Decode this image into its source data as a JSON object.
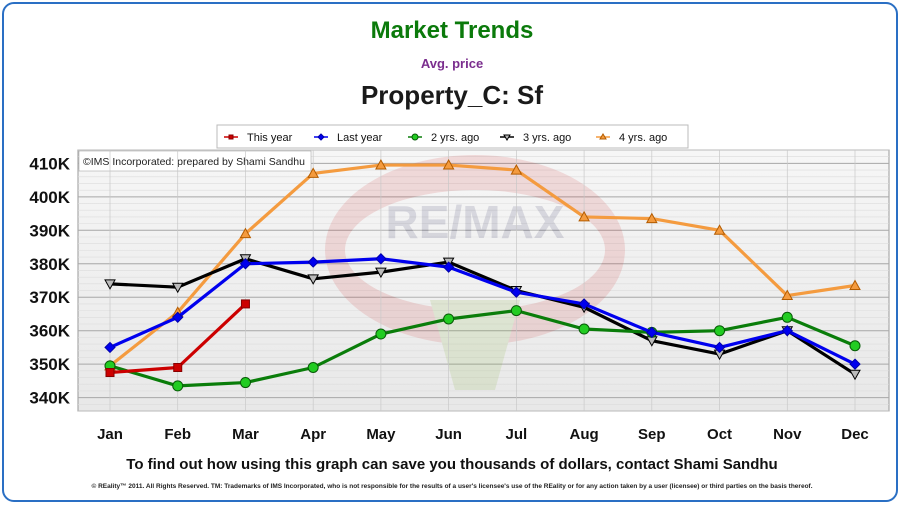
{
  "header": {
    "title": "Market Trends",
    "subtitle": "Avg. price",
    "heading": "Property_C: Sf"
  },
  "watermark": "©IMS Incorporated: prepared by Shami Sandhu",
  "footer": {
    "cta": "To find out how using this graph can save you thousands of dollars, contact Shami Sandhu",
    "legal": "© REality™ 2011. All Rights Reserved. TM: Trademarks of IMS Incorporated, who is not responsible for the results of a user's licensee's use of the REality  or for any action taken by a user (licensee) or third parties on the basis thereof."
  },
  "chart_data": {
    "type": "line",
    "title": "Property_C: Sf",
    "ylabel": "",
    "xlabel": "",
    "categories": [
      "Jan",
      "Feb",
      "Mar",
      "Apr",
      "May",
      "Jun",
      "Jul",
      "Aug",
      "Sep",
      "Oct",
      "Nov",
      "Dec"
    ],
    "y_ticks": [
      "340K",
      "350K",
      "360K",
      "370K",
      "380K",
      "390K",
      "400K",
      "410K"
    ],
    "y_tick_values": [
      340000,
      350000,
      360000,
      370000,
      380000,
      390000,
      400000,
      410000
    ],
    "ylim": [
      336000,
      414000
    ],
    "grid": true,
    "legend_position": "top",
    "series": [
      {
        "name": "This year",
        "color": "#cc0000",
        "marker": "square",
        "values": [
          347500,
          349000,
          368000,
          null,
          null,
          null,
          null,
          null,
          null,
          null,
          null,
          null
        ]
      },
      {
        "name": "Last year",
        "color": "#0000ee",
        "marker": "diamond",
        "values": [
          355000,
          364000,
          380000,
          380500,
          381500,
          379000,
          371500,
          368000,
          359500,
          355000,
          360000,
          350000
        ]
      },
      {
        "name": "2 yrs. ago",
        "color": "#0a7d0a",
        "marker": "circle",
        "values": [
          349500,
          343500,
          344500,
          349000,
          359000,
          363500,
          366000,
          360500,
          359500,
          360000,
          364000,
          355500
        ]
      },
      {
        "name": "3 yrs. ago",
        "color": "#000000",
        "marker": "triangle-down",
        "values": [
          374000,
          373000,
          381500,
          375500,
          377500,
          380500,
          372000,
          367000,
          357000,
          353000,
          360000,
          347000
        ]
      },
      {
        "name": "4 yrs. ago",
        "color": "#f49b3f",
        "marker": "triangle-up",
        "values": [
          349500,
          365500,
          389000,
          407000,
          409500,
          409500,
          408000,
          394000,
          393500,
          390000,
          370500,
          373500
        ]
      }
    ]
  }
}
